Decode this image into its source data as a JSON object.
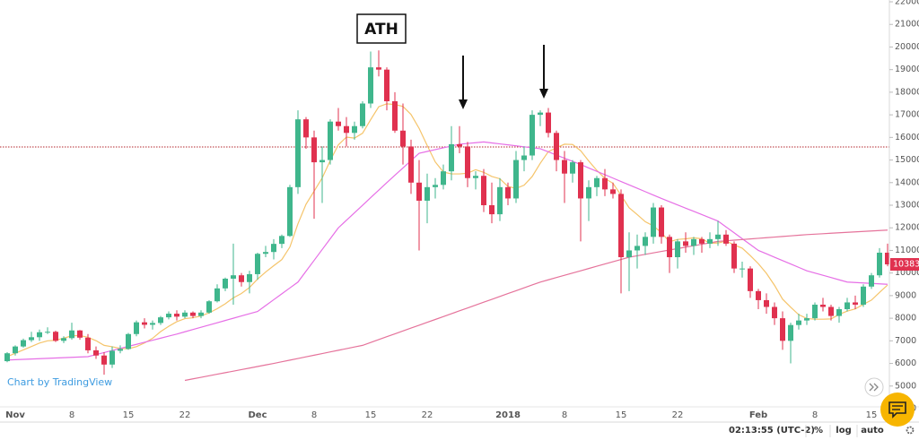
{
  "chart_data": {
    "type": "candlestick",
    "categories": [
      null,
      "Nov",
      null,
      null,
      null,
      null,
      null,
      null,
      "8",
      null,
      null,
      null,
      null,
      null,
      null,
      "15",
      null,
      null,
      null,
      null,
      null,
      null,
      "22",
      null,
      null,
      null,
      null,
      null,
      null,
      null,
      null,
      "Dec",
      null,
      null,
      null,
      null,
      null,
      null,
      "8",
      null,
      null,
      null,
      null,
      null,
      null,
      "15",
      null,
      null,
      null,
      null,
      null,
      null,
      "22",
      null,
      null,
      null,
      null,
      null,
      null,
      null,
      null,
      null,
      "2018",
      null,
      null,
      null,
      null,
      null,
      null,
      "8",
      null,
      null,
      null,
      null,
      null,
      null,
      "15",
      null,
      null,
      null,
      null,
      null,
      null,
      "22",
      null,
      null,
      null,
      null,
      null,
      null,
      null,
      null,
      null,
      "Feb",
      null,
      null,
      null,
      null,
      null,
      null,
      "8",
      null,
      null,
      null,
      null,
      null,
      null,
      "15",
      null,
      null
    ],
    "open": [
      6100,
      6450,
      6750,
      7030,
      7160,
      7380,
      7400,
      7000,
      7120,
      7460,
      7140,
      6580,
      6350,
      5950,
      6560,
      6640,
      7300,
      7820,
      7710,
      7790,
      8040,
      8200,
      8070,
      8250,
      8100,
      8250,
      8750,
      9320,
      9750,
      9900,
      9600,
      9950,
      10850,
      10930,
      11290,
      11640,
      13800,
      16800,
      16000,
      14900,
      15000,
      16700,
      16500,
      16200,
      16500,
      17500,
      19100,
      19000,
      17600,
      16300,
      15600,
      14000,
      13200,
      13800,
      13900,
      14500,
      15700,
      15600,
      14200,
      14300,
      13000,
      12600,
      13800,
      13300,
      15000,
      15200,
      17000,
      17100,
      16200,
      15000,
      14400,
      14900,
      13300,
      13800,
      14200,
      13700,
      13500,
      10700,
      11000,
      11200,
      11600,
      12900,
      11600,
      10700,
      11400,
      11200,
      11500,
      11300,
      11500,
      11700,
      11300,
      10200,
      10200,
      9200,
      8800,
      8500,
      8000,
      7000,
      7700,
      7900,
      8000,
      8600,
      8500,
      8100,
      8400,
      8700,
      8600,
      9400,
      9900,
      10900
    ],
    "high": [
      6500,
      6800,
      7100,
      7400,
      7500,
      7600,
      7450,
      7200,
      7800,
      7480,
      7300,
      6750,
      6500,
      6750,
      6800,
      7350,
      7900,
      8000,
      7900,
      8100,
      8300,
      8350,
      8350,
      8300,
      8350,
      8800,
      9500,
      9800,
      11300,
      10000,
      10100,
      10900,
      11200,
      11500,
      11700,
      13900,
      17200,
      16900,
      16300,
      15600,
      16800,
      17300,
      16900,
      16700,
      17600,
      19800,
      19850,
      19100,
      18000,
      17500,
      15900,
      15000,
      14400,
      14200,
      14800,
      16500,
      16500,
      15800,
      14500,
      14600,
      14000,
      14200,
      14000,
      15400,
      15600,
      17200,
      17200,
      17300,
      16300,
      15400,
      15000,
      15000,
      14100,
      14300,
      14600,
      14000,
      13700,
      11800,
      11700,
      11800,
      13100,
      13000,
      11700,
      11500,
      11800,
      11600,
      11600,
      11800,
      12300,
      11900,
      11400,
      10500,
      10300,
      9300,
      9100,
      8700,
      8300,
      7800,
      8200,
      8200,
      8700,
      8900,
      8600,
      8500,
      8900,
      9000,
      9500,
      10000,
      11100,
      11300
    ],
    "low": [
      6050,
      6350,
      6700,
      6950,
      7000,
      7300,
      6950,
      6900,
      7050,
      7050,
      6450,
      6200,
      5500,
      5800,
      6450,
      6600,
      7200,
      7550,
      7500,
      7700,
      7950,
      7900,
      8000,
      8000,
      8000,
      8200,
      8700,
      9200,
      8600,
      9400,
      9100,
      9700,
      10700,
      10600,
      11100,
      11600,
      13500,
      15500,
      12400,
      13100,
      14800,
      16300,
      15600,
      15900,
      16400,
      17300,
      18700,
      17200,
      16200,
      14800,
      13500,
      11000,
      12200,
      13300,
      13700,
      14100,
      15300,
      13800,
      13700,
      12700,
      12200,
      12300,
      13000,
      13100,
      14500,
      15000,
      16500,
      16000,
      14500,
      13100,
      14000,
      11400,
      12300,
      13400,
      13400,
      13300,
      9100,
      9200,
      10200,
      10800,
      11300,
      11300,
      10000,
      10200,
      10900,
      10800,
      10900,
      11100,
      11200,
      11200,
      10000,
      9800,
      8900,
      8400,
      8200,
      7700,
      6600,
      6000,
      7500,
      7700,
      7900,
      8300,
      7900,
      7800,
      8300,
      8400,
      8500,
      9300,
      9800,
      10300
    ],
    "close": [
      6450,
      6750,
      7030,
      7160,
      7380,
      7400,
      7000,
      7120,
      7460,
      7140,
      6580,
      6350,
      5950,
      6560,
      6640,
      7300,
      7820,
      7710,
      7790,
      8040,
      8200,
      8070,
      8250,
      8100,
      8250,
      8750,
      9320,
      9750,
      9900,
      9600,
      9950,
      10850,
      10930,
      11290,
      11640,
      13800,
      16800,
      16000,
      14900,
      15000,
      16700,
      16500,
      16200,
      16500,
      17500,
      19100,
      19000,
      17600,
      16300,
      15600,
      14000,
      13200,
      13800,
      13900,
      14500,
      15700,
      15600,
      14200,
      14300,
      13000,
      12600,
      13800,
      13300,
      15000,
      15200,
      17000,
      17100,
      16200,
      15000,
      14400,
      14900,
      13300,
      13800,
      14200,
      13700,
      13500,
      10700,
      11000,
      11200,
      11600,
      12900,
      11600,
      10700,
      11400,
      11200,
      11500,
      11300,
      11500,
      11700,
      11300,
      10200,
      10200,
      9200,
      8800,
      8500,
      8000,
      7000,
      7700,
      7900,
      8000,
      8600,
      8500,
      8100,
      8400,
      8700,
      8600,
      9400,
      9900,
      10900,
      10383
    ],
    "up_color": "#3fb68c",
    "down_color": "#e0314f",
    "series": [
      {
        "color": "#f5c46a",
        "values": [
          6300,
          6450,
          6600,
          6750,
          6900,
          7000,
          7024,
          7120,
          7221,
          7237,
          7154,
          7007,
          6800,
          6737,
          6669,
          6646,
          6743,
          6904,
          7110,
          7409,
          7643,
          7847,
          7983,
          8023,
          8100,
          8237,
          8420,
          8641,
          8903,
          9096,
          9360,
          9731,
          10043,
          10324,
          10594,
          11151,
          12180,
          13044,
          13623,
          14204,
          14977,
          15671,
          16014,
          15971,
          16186,
          16786,
          17357,
          17486,
          17457,
          17371,
          17014,
          16400,
          15643,
          14914,
          14471,
          14386,
          14386,
          14414,
          14571,
          14457,
          14271,
          14171,
          13829,
          13743,
          13886,
          14271,
          14857,
          15371,
          15543,
          15700,
          15686,
          15414,
          14957,
          14543,
          14186,
          13971,
          13443,
          12886,
          12586,
          12271,
          12086,
          11786,
          11386,
          11486,
          11514,
          11557,
          11514,
          11314,
          11329,
          11414,
          11243,
          11100,
          10771,
          10414,
          9986,
          9457,
          8843,
          8486,
          8157,
          7986,
          7957,
          7957,
          7971,
          8171,
          8314,
          8414,
          8614,
          8800,
          9143,
          9469
        ]
      },
      {
        "color": "#e66fe6",
        "values": [
          6150,
          6165,
          6180,
          6195,
          6210,
          6225,
          6240,
          6255,
          6270,
          6285,
          6300,
          6391,
          6482,
          6573,
          6664,
          6755,
          6845,
          6936,
          7027,
          7118,
          7209,
          7300,
          7400,
          7500,
          7600,
          7700,
          7800,
          7900,
          8000,
          8100,
          8200,
          8300,
          8560,
          8820,
          9080,
          9340,
          9600,
          10080,
          10560,
          11040,
          11520,
          12000,
          12333,
          12667,
          13000,
          13333,
          13667,
          14000,
          14325,
          14650,
          14975,
          15300,
          15380,
          15460,
          15540,
          15620,
          15700,
          15733,
          15767,
          15800,
          15757,
          15714,
          15671,
          15629,
          15586,
          15543,
          15500,
          15360,
          15220,
          15080,
          14940,
          14800,
          14650,
          14500,
          14350,
          14200,
          14050,
          13900,
          13750,
          13600,
          13450,
          13300,
          13157,
          13014,
          12871,
          12729,
          12586,
          12443,
          12300,
          12040,
          11780,
          11520,
          11260,
          11000,
          10850,
          10700,
          10550,
          10400,
          10250,
          10100,
          10000,
          9900,
          9800,
          9700,
          9600,
          9580,
          9560,
          9540,
          9520,
          9500
        ]
      },
      {
        "color": "#e5739b",
        "values": [
          null,
          null,
          null,
          null,
          null,
          null,
          null,
          null,
          null,
          null,
          null,
          null,
          null,
          null,
          null,
          null,
          null,
          null,
          null,
          null,
          null,
          null,
          5250,
          5318,
          5386,
          5455,
          5523,
          5591,
          5659,
          5727,
          5795,
          5864,
          5932,
          6000,
          6073,
          6145,
          6218,
          6291,
          6364,
          6436,
          6509,
          6582,
          6655,
          6727,
          6800,
          6927,
          7055,
          7182,
          7309,
          7436,
          7564,
          7691,
          7818,
          7945,
          8073,
          8200,
          8327,
          8455,
          8582,
          8709,
          8836,
          8964,
          9091,
          9218,
          9345,
          9473,
          9600,
          9700,
          9800,
          9900,
          10000,
          10100,
          10200,
          10300,
          10400,
          10500,
          10600,
          10700,
          10764,
          10827,
          10891,
          10955,
          11018,
          11082,
          11145,
          11209,
          11273,
          11336,
          11400,
          11427,
          11455,
          11482,
          11509,
          11536,
          11564,
          11591,
          11618,
          11645,
          11673,
          11700,
          11720,
          11740,
          11760,
          11780,
          11800,
          11820,
          11840,
          11860,
          11880,
          11900
        ]
      }
    ],
    "reference_line": {
      "value": 15580,
      "color": "#b3262d"
    },
    "ylim": [
      4000,
      22080
    ],
    "yticks": [
      4000,
      5000,
      6000,
      7000,
      8000,
      9000,
      10000,
      11000,
      12000,
      13000,
      14000,
      15000,
      16000,
      17000,
      18000,
      19000,
      20000,
      21000,
      22000
    ],
    "grid": false,
    "annotations": [
      "ATH"
    ],
    "attribution": "Chart by TradingView"
  },
  "toolbar": {
    "time": "02:13:55 (UTC-2)",
    "buttons": [
      "%",
      "log",
      "auto"
    ]
  }
}
